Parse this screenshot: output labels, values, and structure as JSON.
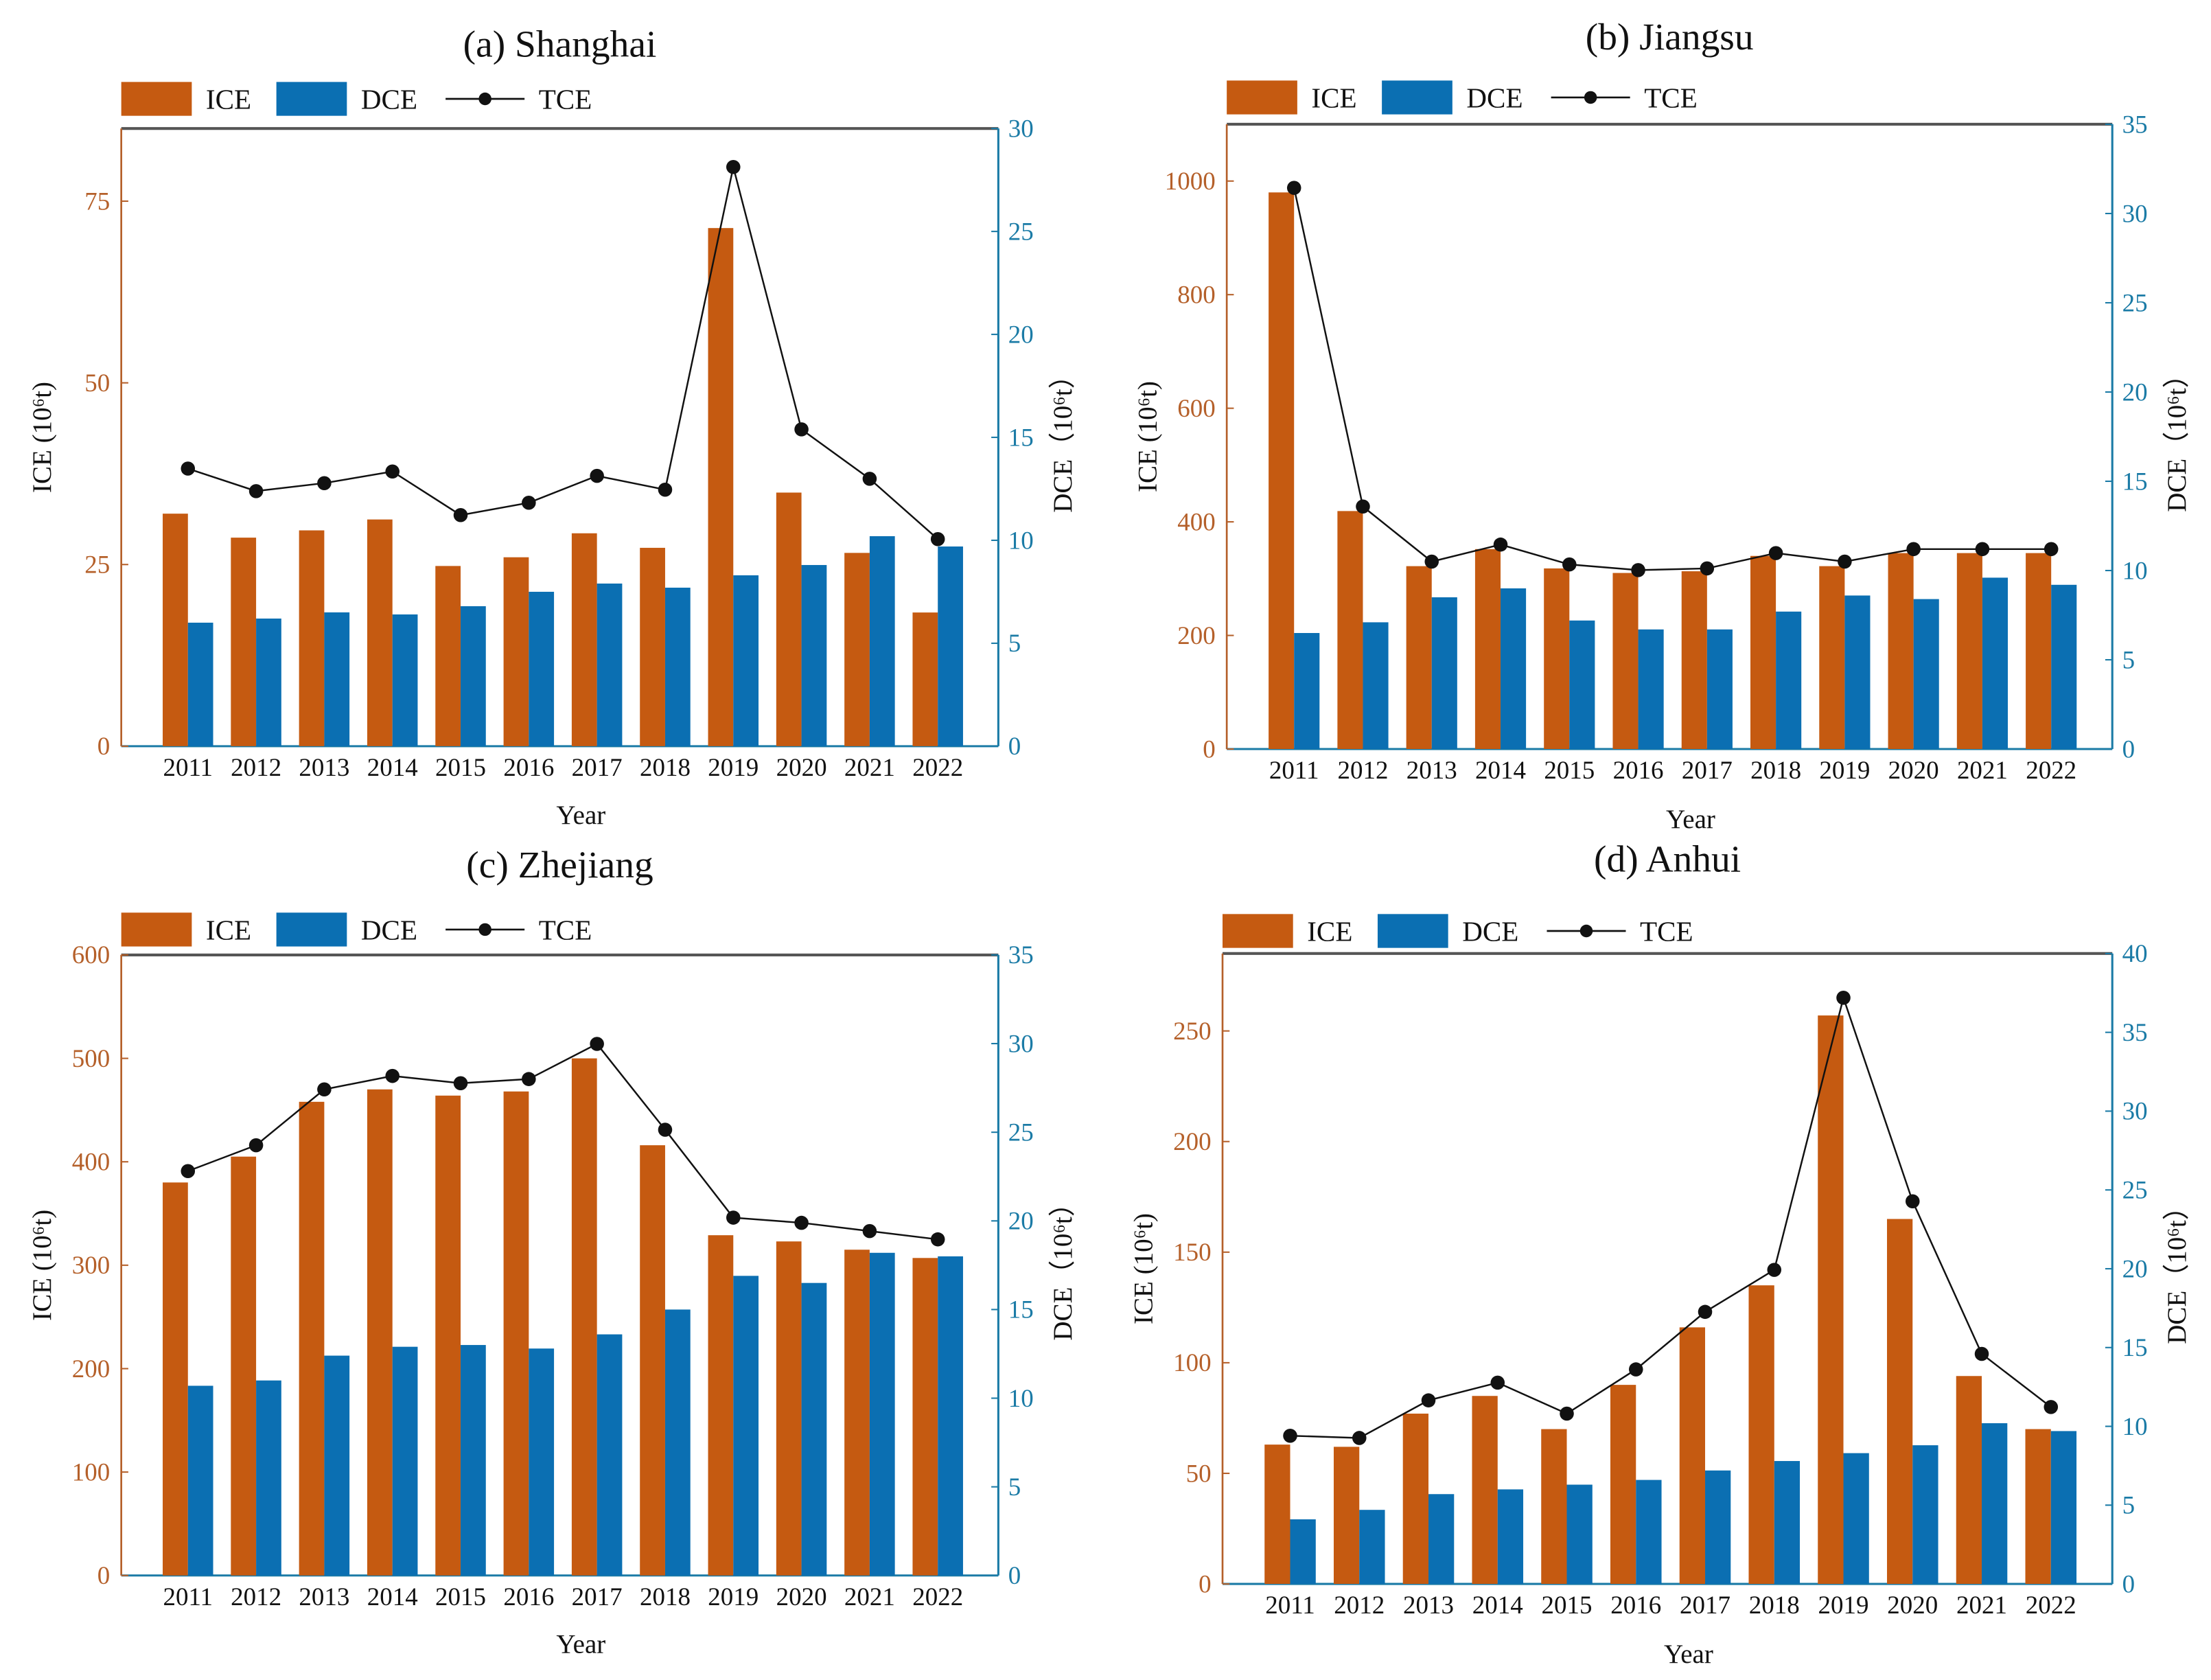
{
  "colors": {
    "ice": "#C55A11",
    "dce": "#0B6FB2",
    "tce": "#111111",
    "left_axis": "#B5602A",
    "right_axis": "#1B7BA6"
  },
  "chart_data": [
    {
      "type": "bar",
      "title": "(a) Shanghai",
      "xlabel": "Year",
      "ylabel": "ICE (10⁶t)",
      "y2label": "DCE（10⁶t）",
      "legend": [
        "ICE",
        "DCE",
        "TCE"
      ],
      "legend_placement": "top-left",
      "categories": [
        "2011",
        "2012",
        "2013",
        "2014",
        "2015",
        "2016",
        "2017",
        "2018",
        "2019",
        "2020",
        "2021",
        "2022"
      ],
      "ylim": [
        0,
        85
      ],
      "yticks": [
        0,
        25,
        50,
        75
      ],
      "y2lim": [
        0,
        30
      ],
      "y2ticks": [
        0,
        5,
        10,
        15,
        20,
        25,
        30
      ],
      "series": [
        {
          "name": "ICE",
          "axis": "left",
          "kind": "bar",
          "values": [
            32.0,
            28.7,
            29.7,
            31.2,
            24.8,
            26.0,
            29.3,
            27.3,
            71.3,
            34.9,
            26.6,
            18.4
          ]
        },
        {
          "name": "DCE",
          "axis": "right",
          "kind": "bar",
          "values": [
            6.0,
            6.2,
            6.5,
            6.4,
            6.8,
            7.5,
            7.9,
            7.7,
            8.3,
            8.8,
            10.2,
            9.7
          ]
        },
        {
          "name": "TCE",
          "axis": "left",
          "kind": "line",
          "values": [
            38.2,
            35.1,
            36.2,
            37.8,
            31.8,
            33.5,
            37.2,
            35.3,
            79.7,
            43.6,
            36.8,
            28.5
          ]
        }
      ]
    },
    {
      "type": "bar",
      "title": "(b) Jiangsu",
      "xlabel": "Year",
      "ylabel": "ICE (10⁶t)",
      "y2label": "DCE（10⁶t）",
      "legend": [
        "ICE",
        "DCE",
        "TCE"
      ],
      "legend_placement": "top-left",
      "categories": [
        "2011",
        "2012",
        "2013",
        "2014",
        "2015",
        "2016",
        "2017",
        "2018",
        "2019",
        "2020",
        "2021",
        "2022"
      ],
      "ylim": [
        0,
        1100
      ],
      "yticks": [
        0,
        200,
        400,
        600,
        800,
        1000
      ],
      "y2lim": [
        0,
        35
      ],
      "y2ticks": [
        0,
        5,
        10,
        15,
        20,
        25,
        30,
        35
      ],
      "series": [
        {
          "name": "ICE",
          "axis": "left",
          "kind": "bar",
          "values": [
            980,
            419,
            322,
            352,
            318,
            310,
            313,
            340,
            322,
            345,
            345,
            345
          ]
        },
        {
          "name": "DCE",
          "axis": "right",
          "kind": "bar",
          "values": [
            6.5,
            7.1,
            8.5,
            9.0,
            7.2,
            6.7,
            6.7,
            7.7,
            8.6,
            8.4,
            9.6,
            9.2
          ]
        },
        {
          "name": "TCE",
          "axis": "left",
          "kind": "line",
          "values": [
            988,
            427,
            330,
            360,
            325,
            315,
            318,
            345,
            330,
            352,
            352,
            352
          ]
        }
      ]
    },
    {
      "type": "bar",
      "title": "(c) Zhejiang",
      "xlabel": "Year",
      "ylabel": "ICE (10⁶t)",
      "y2label": "DCE（10⁶t）",
      "legend": [
        "ICE",
        "DCE",
        "TCE"
      ],
      "legend_placement": "top-left",
      "categories": [
        "2011",
        "2012",
        "2013",
        "2014",
        "2015",
        "2016",
        "2017",
        "2018",
        "2019",
        "2020",
        "2021",
        "2022"
      ],
      "ylim": [
        0,
        600
      ],
      "yticks": [
        0,
        100,
        200,
        300,
        400,
        500,
        600
      ],
      "y2lim": [
        0,
        35
      ],
      "y2ticks": [
        0,
        5,
        10,
        15,
        20,
        25,
        30,
        35
      ],
      "series": [
        {
          "name": "ICE",
          "axis": "left",
          "kind": "bar",
          "values": [
            380,
            405,
            458,
            470,
            464,
            468,
            500,
            416,
            329,
            323,
            315,
            307
          ]
        },
        {
          "name": "DCE",
          "axis": "right",
          "kind": "bar",
          "values": [
            10.7,
            11.0,
            12.4,
            12.9,
            13.0,
            12.8,
            13.6,
            15.0,
            16.9,
            16.5,
            18.2,
            18.0
          ]
        },
        {
          "name": "TCE",
          "axis": "left",
          "kind": "line",
          "values": [
            391,
            416,
            470,
            483,
            476,
            480,
            514,
            431,
            346,
            341,
            333,
            325
          ]
        }
      ]
    },
    {
      "type": "bar",
      "title": "(d) Anhui",
      "xlabel": "Year",
      "ylabel": "ICE (10⁶t)",
      "y2label": "DCE（10⁶t）",
      "legend": [
        "ICE",
        "DCE",
        "TCE"
      ],
      "legend_placement": "top-left",
      "categories": [
        "2011",
        "2012",
        "2013",
        "2014",
        "2015",
        "2016",
        "2017",
        "2018",
        "2019",
        "2020",
        "2021",
        "2022"
      ],
      "ylim": [
        0,
        285
      ],
      "yticks": [
        0,
        50,
        100,
        150,
        200,
        250
      ],
      "y2lim": [
        0,
        40
      ],
      "y2ticks": [
        0,
        5,
        10,
        15,
        20,
        25,
        30,
        35,
        40
      ],
      "series": [
        {
          "name": "ICE",
          "axis": "left",
          "kind": "bar",
          "values": [
            63,
            62,
            77,
            85,
            70,
            90,
            116,
            135,
            257,
            165,
            94,
            70
          ]
        },
        {
          "name": "DCE",
          "axis": "right",
          "kind": "bar",
          "values": [
            4.1,
            4.7,
            5.7,
            6.0,
            6.3,
            6.6,
            7.2,
            7.8,
            8.3,
            8.8,
            10.2,
            9.7
          ]
        },
        {
          "name": "TCE",
          "axis": "left",
          "kind": "line",
          "values": [
            67,
            66,
            83,
            91,
            77,
            97,
            123,
            142,
            265,
            173,
            104,
            80
          ]
        }
      ]
    }
  ]
}
